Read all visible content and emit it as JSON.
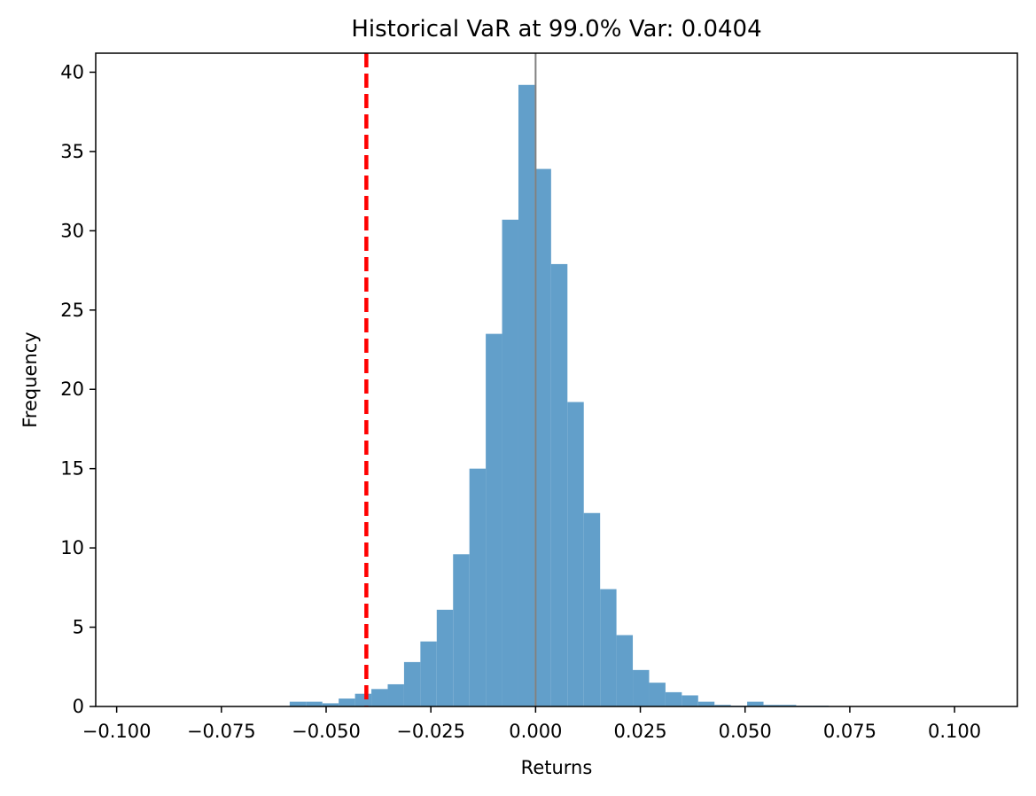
{
  "chart_data": {
    "type": "bar",
    "title": "Historical VaR at 99.0% Var: 0.0404",
    "xlabel": "Returns",
    "ylabel": "Frequency",
    "xlim": [
      -0.105,
      0.115
    ],
    "ylim": [
      0,
      41.2
    ],
    "xticks": [
      {
        "value": -0.1,
        "label": "−0.100"
      },
      {
        "value": -0.075,
        "label": "−0.075"
      },
      {
        "value": -0.05,
        "label": "−0.050"
      },
      {
        "value": -0.025,
        "label": "−0.025"
      },
      {
        "value": 0.0,
        "label": "0.000"
      },
      {
        "value": 0.025,
        "label": "0.025"
      },
      {
        "value": 0.05,
        "label": "0.050"
      },
      {
        "value": 0.075,
        "label": "0.075"
      },
      {
        "value": 0.1,
        "label": "0.100"
      }
    ],
    "yticks": [
      {
        "value": 0,
        "label": "0"
      },
      {
        "value": 5,
        "label": "5"
      },
      {
        "value": 10,
        "label": "10"
      },
      {
        "value": 15,
        "label": "15"
      },
      {
        "value": 20,
        "label": "20"
      },
      {
        "value": 25,
        "label": "25"
      },
      {
        "value": 30,
        "label": "30"
      },
      {
        "value": 35,
        "label": "35"
      },
      {
        "value": 40,
        "label": "40"
      }
    ],
    "bins": [
      {
        "x0": -0.0587,
        "x1": -0.0548,
        "value": 0.3
      },
      {
        "x0": -0.0548,
        "x1": -0.0509,
        "value": 0.3
      },
      {
        "x0": -0.0509,
        "x1": -0.047,
        "value": 0.2
      },
      {
        "x0": -0.047,
        "x1": -0.0431,
        "value": 0.5
      },
      {
        "x0": -0.0431,
        "x1": -0.0392,
        "value": 0.8
      },
      {
        "x0": -0.0392,
        "x1": -0.0353,
        "value": 1.1
      },
      {
        "x0": -0.0353,
        "x1": -0.0314,
        "value": 1.4
      },
      {
        "x0": -0.0314,
        "x1": -0.0275,
        "value": 2.8
      },
      {
        "x0": -0.0275,
        "x1": -0.0236,
        "value": 4.1
      },
      {
        "x0": -0.0236,
        "x1": -0.0197,
        "value": 6.1
      },
      {
        "x0": -0.0197,
        "x1": -0.0158,
        "value": 9.6
      },
      {
        "x0": -0.0158,
        "x1": -0.0119,
        "value": 15.0
      },
      {
        "x0": -0.0119,
        "x1": -0.008,
        "value": 23.5
      },
      {
        "x0": -0.008,
        "x1": -0.0041,
        "value": 30.7
      },
      {
        "x0": -0.0041,
        "x1": -0.0002,
        "value": 39.2
      },
      {
        "x0": -0.0002,
        "x1": 0.0037,
        "value": 33.9
      },
      {
        "x0": 0.0037,
        "x1": 0.0076,
        "value": 27.9
      },
      {
        "x0": 0.0076,
        "x1": 0.0115,
        "value": 19.2
      },
      {
        "x0": 0.0115,
        "x1": 0.0154,
        "value": 12.2
      },
      {
        "x0": 0.0154,
        "x1": 0.0193,
        "value": 7.4
      },
      {
        "x0": 0.0193,
        "x1": 0.0232,
        "value": 4.5
      },
      {
        "x0": 0.0232,
        "x1": 0.0271,
        "value": 2.3
      },
      {
        "x0": 0.0271,
        "x1": 0.031,
        "value": 1.5
      },
      {
        "x0": 0.031,
        "x1": 0.0349,
        "value": 0.9
      },
      {
        "x0": 0.0349,
        "x1": 0.0388,
        "value": 0.7
      },
      {
        "x0": 0.0388,
        "x1": 0.0427,
        "value": 0.3
      },
      {
        "x0": 0.0427,
        "x1": 0.0466,
        "value": 0.1
      },
      {
        "x0": 0.0466,
        "x1": 0.0505,
        "value": 0.05
      },
      {
        "x0": 0.0505,
        "x1": 0.0544,
        "value": 0.3
      },
      {
        "x0": 0.0544,
        "x1": 0.0583,
        "value": 0.1
      },
      {
        "x0": 0.0583,
        "x1": 0.0622,
        "value": 0.1
      },
      {
        "x0": 0.0622,
        "x1": 0.0661,
        "value": 0.05
      },
      {
        "x0": 0.0661,
        "x1": 0.07,
        "value": 0.05
      }
    ],
    "var_line": {
      "x": -0.0404,
      "color": "#ff0000",
      "style": "dashed"
    },
    "zero_line": {
      "x": 0.0,
      "color": "#808080"
    },
    "bar_color": "#629fca",
    "grid": false
  }
}
